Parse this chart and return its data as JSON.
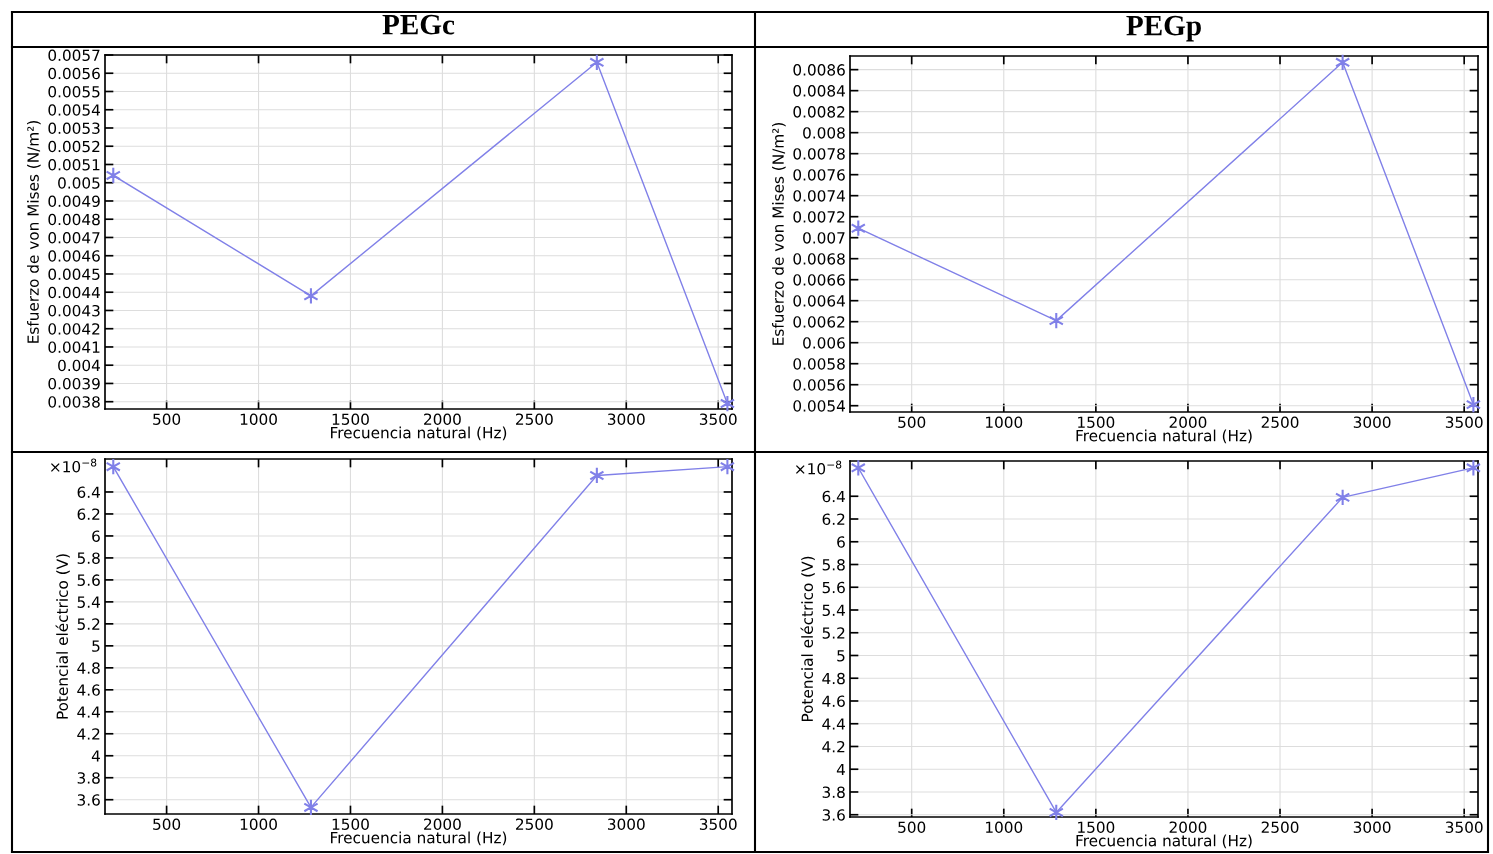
{
  "chart_data": [
    {
      "type": "line",
      "title": "PEGc",
      "xlabel": "Frecuencia natural (Hz)",
      "ylabel": "Esfuerzo de von Mises (N/m²)",
      "x": [
        210,
        1285,
        2840,
        3550
      ],
      "series": [
        {
          "color": "#8080e8",
          "values": [
            0.00504,
            0.00438,
            0.00566,
            0.00379
          ]
        }
      ],
      "xlim": [
        165,
        3575
      ],
      "xticks": [
        500,
        1000,
        1500,
        2000,
        2500,
        3000,
        3500
      ],
      "ylim": [
        0.00376,
        0.0057
      ],
      "yticks": [
        0.0038,
        0.0039,
        0.004,
        0.0041,
        0.0042,
        0.0043,
        0.0044,
        0.0045,
        0.0046,
        0.0047,
        0.0048,
        0.0049,
        0.005,
        0.0051,
        0.0052,
        0.0053,
        0.0054,
        0.0055,
        0.0056,
        0.0057
      ],
      "grid": true,
      "marker": "cross",
      "line_style": "solid"
    },
    {
      "type": "line",
      "title": "PEGp",
      "xlabel": "Frecuencia natural (Hz)",
      "ylabel": "Esfuerzo de von Mises (N/m²)",
      "x": [
        210,
        1285,
        2840,
        3550
      ],
      "series": [
        {
          "color": "#8080e8",
          "values": [
            0.00709,
            0.00621,
            0.00867,
            0.00541
          ]
        }
      ],
      "xlim": [
        165,
        3575
      ],
      "xticks": [
        500,
        1000,
        1500,
        2000,
        2500,
        3000,
        3500
      ],
      "ylim": [
        0.00534,
        0.00873
      ],
      "yticks": [
        0.0054,
        0.0056,
        0.0058,
        0.006,
        0.0062,
        0.0064,
        0.0066,
        0.0068,
        0.007,
        0.0072,
        0.0074,
        0.0076,
        0.0078,
        0.008,
        0.0082,
        0.0084,
        0.0086
      ],
      "grid": true,
      "marker": "cross",
      "line_style": "solid"
    },
    {
      "type": "line",
      "xlabel": "Frecuencia natural (Hz)",
      "ylabel": "Potencial eléctrico (V)",
      "annotations": [
        "×10$^{−8}$"
      ],
      "x": [
        210,
        1285,
        2840,
        3550
      ],
      "series": [
        {
          "color": "#8080e8",
          "values": [
            6.63,
            3.53,
            6.55,
            6.63
          ]
        }
      ],
      "xlim": [
        165,
        3575
      ],
      "xticks": [
        500,
        1000,
        1500,
        2000,
        2500,
        3000,
        3500
      ],
      "ylim": [
        3.47,
        6.7
      ],
      "yticks": [
        3.6,
        3.8,
        4,
        4.2,
        4.4,
        4.6,
        4.8,
        5,
        5.2,
        5.4,
        5.6,
        5.8,
        6,
        6.2,
        6.4
      ],
      "grid": true,
      "marker": "cross",
      "line_style": "solid"
    },
    {
      "type": "line",
      "xlabel": "Frecuencia natural (Hz)",
      "ylabel": "Potencial eléctrico (V)",
      "annotations": [
        "×10$^{−8}$"
      ],
      "x": [
        210,
        1285,
        2840,
        3550
      ],
      "series": [
        {
          "color": "#8080e8",
          "values": [
            6.65,
            3.62,
            6.39,
            6.65
          ]
        }
      ],
      "xlim": [
        165,
        3575
      ],
      "xticks": [
        500,
        1000,
        1500,
        2000,
        2500,
        3000,
        3500
      ],
      "ylim": [
        3.58,
        6.71
      ],
      "yticks": [
        3.6,
        3.8,
        4,
        4.2,
        4.4,
        4.6,
        4.8,
        5,
        5.2,
        5.4,
        5.6,
        5.8,
        6,
        6.2,
        6.4
      ],
      "grid": true,
      "marker": "cross",
      "line_style": "solid"
    }
  ]
}
